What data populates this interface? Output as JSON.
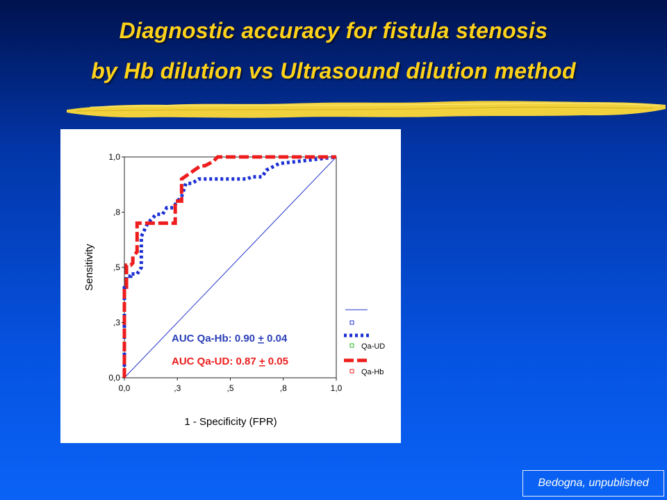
{
  "slide": {
    "title_line1": "Diagnostic accuracy for fistula stenosis",
    "title_line2": "by  Hb dilution  vs  Ultrasound dilution method",
    "credit": "Bedogna, unpublished",
    "title_color": "#ffd21a",
    "brush_color": "#f2d23c"
  },
  "chart_data": {
    "type": "line",
    "xlabel": "1 - Specificity  (FPR)",
    "ylabel": "Sensitivity",
    "xlim": [
      0,
      1
    ],
    "ylim": [
      0,
      1
    ],
    "x_ticks": [
      0.0,
      0.25,
      0.5,
      0.75,
      1.0
    ],
    "x_tick_labels": [
      "0,0",
      ",3",
      ",5",
      ",8",
      "1,0"
    ],
    "y_ticks": [
      0.0,
      0.25,
      0.5,
      0.75,
      1.0
    ],
    "y_tick_labels": [
      "0,0",
      ",3",
      ",5",
      ",8",
      "1,0"
    ],
    "grid": false,
    "legend_position": "right",
    "legend_entries": [
      "Qa-UD",
      "Qa-Hb"
    ],
    "annotations": [
      {
        "text_pre": "AUC Qa-Hb: 0.90 ",
        "pm": "+",
        "text_post": " 0.04",
        "color": "#2a3fb8"
      },
      {
        "text_pre": "AUC Qa-UD: 0.87 ",
        "pm": "+",
        "text_post": " 0.05",
        "color": "#ee1c1c"
      }
    ],
    "series": [
      {
        "style": "diagonal",
        "color": "#2233cc",
        "x": [
          0,
          1
        ],
        "y": [
          0,
          1
        ]
      },
      {
        "style": "dotted",
        "color": "#1a2fd4",
        "x": [
          0,
          0,
          0.01,
          0.01,
          0.03,
          0.03,
          0.06,
          0.08,
          0.08,
          0.11,
          0.13,
          0.15,
          0.18,
          0.2,
          0.23,
          0.25,
          0.27,
          0.29,
          0.32,
          0.35,
          0.58,
          0.6,
          0.65,
          0.67,
          0.69,
          0.73,
          1.0
        ],
        "y": [
          0,
          0.42,
          0.42,
          0.46,
          0.46,
          0.47,
          0.47,
          0.5,
          0.64,
          0.7,
          0.72,
          0.74,
          0.74,
          0.77,
          0.77,
          0.8,
          0.82,
          0.88,
          0.88,
          0.9,
          0.9,
          0.91,
          0.91,
          0.94,
          0.95,
          0.97,
          1.0
        ]
      },
      {
        "style": "dashed",
        "color": "#ee1c1c",
        "x": [
          0,
          0,
          0.01,
          0.01,
          0.03,
          0.04,
          0.04,
          0.06,
          0.06,
          0.24,
          0.24,
          0.27,
          0.27,
          0.3,
          0.33,
          0.36,
          0.38,
          0.42,
          0.44,
          1.0
        ],
        "y": [
          0,
          0.41,
          0.41,
          0.51,
          0.51,
          0.52,
          0.55,
          0.57,
          0.7,
          0.7,
          0.8,
          0.8,
          0.9,
          0.92,
          0.94,
          0.96,
          0.96,
          0.98,
          1.0,
          1.0
        ]
      }
    ]
  }
}
